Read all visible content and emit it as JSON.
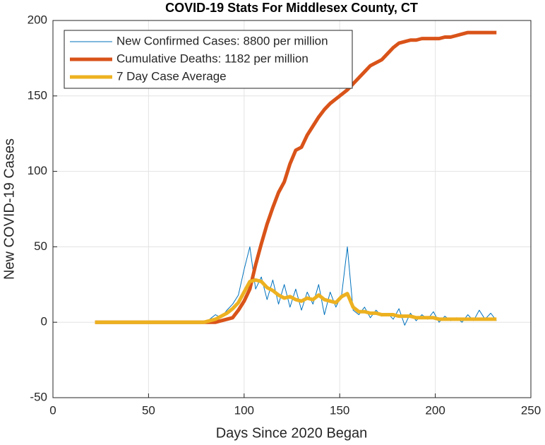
{
  "chart_data": {
    "type": "line",
    "title": "COVID-19 Stats For Middlesex County, CT",
    "x_label": "Days Since 2020 Began",
    "y_label": "New COVID-19 Cases",
    "x": [
      22,
      25,
      28,
      31,
      34,
      37,
      40,
      43,
      46,
      49,
      52,
      55,
      58,
      61,
      64,
      67,
      70,
      73,
      76,
      79,
      82,
      85,
      88,
      91,
      94,
      97,
      100,
      103,
      106,
      109,
      112,
      115,
      118,
      121,
      124,
      127,
      130,
      133,
      136,
      139,
      142,
      145,
      148,
      151,
      154,
      157,
      160,
      163,
      166,
      169,
      172,
      175,
      178,
      181,
      184,
      187,
      190,
      193,
      196,
      199,
      202,
      205,
      208,
      211,
      214,
      217,
      220,
      223,
      226,
      229,
      232
    ],
    "series": [
      {
        "name": "New Confirmed Cases: 8800 per million",
        "color": "#0072bd",
        "width": 1,
        "values": [
          0,
          0,
          0,
          0,
          0,
          0,
          0,
          0,
          0,
          0,
          0,
          0,
          0,
          0,
          0,
          0,
          0,
          0,
          0,
          0,
          2,
          5,
          3,
          8,
          12,
          18,
          35,
          50,
          22,
          30,
          15,
          28,
          12,
          25,
          10,
          22,
          8,
          20,
          12,
          25,
          5,
          20,
          10,
          18,
          50,
          8,
          5,
          10,
          3,
          8,
          4,
          6,
          2,
          9,
          -2,
          6,
          1,
          5,
          2,
          7,
          0,
          4,
          1,
          3,
          0,
          5,
          1,
          8,
          2,
          6,
          1
        ]
      },
      {
        "name": "Cumulative Deaths: 1182 per million",
        "color": "#d95319",
        "width": 5,
        "values": [
          0,
          0,
          0,
          0,
          0,
          0,
          0,
          0,
          0,
          0,
          0,
          0,
          0,
          0,
          0,
          0,
          0,
          0,
          0,
          0,
          0,
          0,
          1,
          2,
          3,
          8,
          14,
          22,
          38,
          52,
          65,
          76,
          86,
          93,
          105,
          114,
          116,
          124,
          130,
          136,
          141,
          145,
          148,
          151,
          154,
          158,
          162,
          166,
          170,
          172,
          174,
          178,
          182,
          185,
          186,
          187,
          187,
          188,
          188,
          188,
          188,
          189,
          189,
          190,
          191,
          192,
          192,
          192,
          192,
          192,
          192
        ]
      },
      {
        "name": "7 Day Case Average",
        "color": "#edb120",
        "width": 5,
        "values": [
          0,
          0,
          0,
          0,
          0,
          0,
          0,
          0,
          0,
          0,
          0,
          0,
          0,
          0,
          0,
          0,
          0,
          0,
          0,
          0,
          1,
          2,
          4,
          6,
          9,
          13,
          20,
          27,
          28,
          27,
          23,
          21,
          18,
          16,
          17,
          15,
          14,
          16,
          15,
          18,
          15,
          14,
          13,
          17,
          19,
          10,
          7,
          7,
          6,
          6,
          5,
          5,
          5,
          4,
          4,
          4,
          3,
          3,
          3,
          3,
          2,
          2,
          2,
          2,
          2,
          2,
          2,
          2,
          2,
          2,
          2
        ]
      }
    ],
    "xlim": [
      0,
      250
    ],
    "xticks": [
      0,
      50,
      100,
      150,
      200,
      250
    ],
    "ylim": [
      -50,
      200
    ],
    "yticks": [
      -50,
      0,
      50,
      100,
      150,
      200
    ],
    "grid": true,
    "legend": "top-left"
  }
}
